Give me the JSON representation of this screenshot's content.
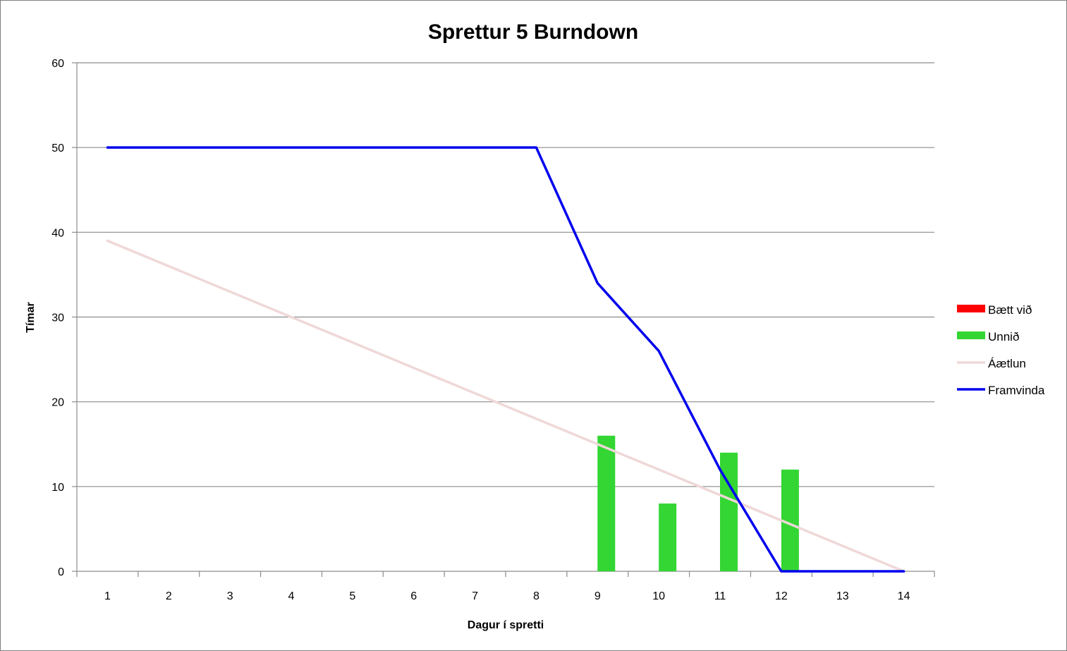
{
  "chart_data": {
    "type": "bar",
    "title": "Sprettur 5 Burndown",
    "xlabel": "Dagur í spretti",
    "ylabel": "Tímar",
    "categories": [
      "1",
      "2",
      "3",
      "4",
      "5",
      "6",
      "7",
      "8",
      "9",
      "10",
      "11",
      "12",
      "13",
      "14"
    ],
    "ylim": [
      0,
      60
    ],
    "yticks": [
      0,
      10,
      20,
      30,
      40,
      50,
      60
    ],
    "grid": true,
    "legend_position": "right",
    "series": [
      {
        "name": "Bætt við",
        "kind": "bar",
        "color": "#ff0000",
        "values": [
          0,
          0,
          0,
          0,
          0,
          0,
          0,
          0,
          0,
          0,
          0,
          0,
          0,
          0
        ]
      },
      {
        "name": "Unnið",
        "kind": "bar",
        "color": "#33d633",
        "values": [
          0,
          0,
          0,
          0,
          0,
          0,
          0,
          0,
          16,
          8,
          14,
          12,
          0,
          0
        ]
      },
      {
        "name": "Áætlun",
        "kind": "line",
        "color": "#f0d8d8",
        "values": [
          39,
          36,
          33,
          30,
          27,
          24,
          21,
          18,
          15,
          12,
          9,
          6,
          3,
          0
        ]
      },
      {
        "name": "Framvinda",
        "kind": "line",
        "color": "#0000ee",
        "values": [
          50,
          50,
          50,
          50,
          50,
          50,
          50,
          50,
          34,
          26,
          12,
          0,
          0,
          0
        ]
      }
    ]
  }
}
